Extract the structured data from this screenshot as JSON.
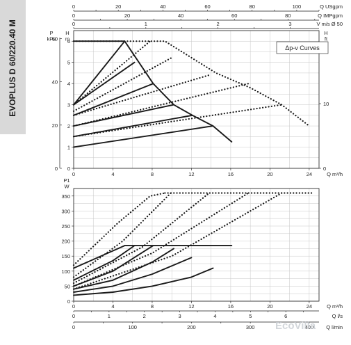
{
  "sidebar_label": "EVOPLUS D 60/220.40 M",
  "watermark": "EcoVilla",
  "colors": {
    "ink": "#1a1a1a",
    "grid": "#c7c7c7",
    "sidebar": "#d9d9d9"
  },
  "chart_data": [
    {
      "type": "line",
      "legend_text": "Δp-v Curves",
      "legend_position": "top-right",
      "grid": true,
      "x_axes": [
        {
          "unit": "Q USgpm",
          "ticks": [
            0,
            20,
            40,
            60,
            80,
            100
          ],
          "range": [
            0,
            110
          ]
        },
        {
          "unit": "Q IMPgpm",
          "ticks": [
            0,
            20,
            40,
            60,
            80
          ],
          "range": [
            0,
            91.6
          ]
        },
        {
          "unit": "V m/s Ø 50",
          "ticks": [
            0,
            1,
            2,
            3
          ],
          "range": [
            0,
            3.4
          ]
        },
        {
          "unit": "Q m³/h",
          "ticks": [
            0,
            4,
            8,
            12,
            16,
            20,
            24
          ],
          "range": [
            0,
            25
          ]
        }
      ],
      "y_left_head": {
        "unit": "H\nm",
        "ticks": [
          0,
          1,
          2,
          3,
          4,
          5,
          6
        ],
        "range": [
          0,
          6.5
        ]
      },
      "y_left_pressure": {
        "unit": "P\nkPa",
        "ticks": [
          0,
          20,
          40,
          60
        ],
        "range": [
          0,
          63.7
        ]
      },
      "y_right": {
        "unit": "H\nft",
        "ticks": [
          0,
          10
        ],
        "range": [
          0,
          21.3
        ]
      },
      "series": [
        {
          "style": "solid",
          "points": [
            [
              0,
              1.0
            ],
            [
              14.2,
              2.0
            ]
          ]
        },
        {
          "style": "solid",
          "points": [
            [
              0,
              1.5
            ],
            [
              12.1,
              2.5
            ]
          ]
        },
        {
          "style": "solid",
          "points": [
            [
              0,
              2.0
            ],
            [
              10.2,
              3.0
            ]
          ]
        },
        {
          "style": "solid",
          "points": [
            [
              0,
              2.5
            ],
            [
              8.1,
              4.0
            ]
          ]
        },
        {
          "style": "solid",
          "points": [
            [
              0,
              3.0
            ],
            [
              6.2,
              5.0
            ]
          ]
        },
        {
          "style": "solid",
          "points": [
            [
              0,
              3.0
            ],
            [
              5.2,
              6.0
            ]
          ]
        },
        {
          "style": "solid",
          "points": [
            [
              0,
              6.0
            ],
            [
              5.2,
              6.0
            ],
            [
              8.1,
              4.0
            ],
            [
              10.2,
              3.0
            ],
            [
              12.1,
              2.5
            ],
            [
              14.2,
              2.0
            ],
            [
              16.1,
              1.25
            ]
          ]
        },
        {
          "style": "dotted",
          "points": [
            [
              0,
              1.5
            ],
            [
              21.2,
              3.0
            ]
          ]
        },
        {
          "style": "dotted",
          "points": [
            [
              0,
              2.0
            ],
            [
              17.8,
              4.0
            ]
          ]
        },
        {
          "style": "dotted",
          "points": [
            [
              0,
              2.5
            ],
            [
              13.8,
              4.4
            ]
          ]
        },
        {
          "style": "dotted",
          "points": [
            [
              0,
              2.7
            ],
            [
              9.9,
              5.2
            ]
          ]
        },
        {
          "style": "dotted",
          "points": [
            [
              0,
              3.0
            ],
            [
              7.8,
              6.0
            ]
          ]
        },
        {
          "style": "dotted",
          "points": [
            [
              0,
              6.0
            ],
            [
              9.3,
              6.0
            ],
            [
              14.5,
              4.5
            ],
            [
              18.0,
              3.8
            ],
            [
              21.2,
              3.0
            ],
            [
              24.0,
              2.0
            ]
          ]
        }
      ]
    },
    {
      "type": "line",
      "grid": true,
      "x_axes": [
        {
          "unit": "Q m³/h",
          "ticks": [
            0,
            4,
            8,
            12,
            16,
            20,
            24
          ],
          "range": [
            0,
            25
          ]
        },
        {
          "unit": "Q l/s",
          "ticks": [
            0,
            1,
            2,
            3,
            4,
            5,
            6
          ],
          "range": [
            0,
            6.94
          ]
        },
        {
          "unit": "Q l/min",
          "ticks": [
            0,
            100,
            200,
            300,
            400
          ],
          "range": [
            0,
            416.7
          ]
        }
      ],
      "y_left": {
        "unit": "P1\nW",
        "ticks": [
          0,
          50,
          100,
          150,
          200,
          250,
          300,
          350
        ],
        "range": [
          0,
          375
        ]
      },
      "series": [
        {
          "style": "solid",
          "points": [
            [
              0,
              20
            ],
            [
              4,
              30
            ],
            [
              8,
              50
            ],
            [
              12,
              80
            ],
            [
              14.2,
              110
            ]
          ]
        },
        {
          "style": "solid",
          "points": [
            [
              0,
              30
            ],
            [
              4,
              50
            ],
            [
              8,
              90
            ],
            [
              12,
              145
            ]
          ]
        },
        {
          "style": "solid",
          "points": [
            [
              0,
              40
            ],
            [
              4,
              70
            ],
            [
              8,
              130
            ],
            [
              10.2,
              175
            ]
          ]
        },
        {
          "style": "solid",
          "points": [
            [
              0,
              50
            ],
            [
              4,
              100
            ],
            [
              8.1,
              185
            ]
          ]
        },
        {
          "style": "solid",
          "points": [
            [
              0,
              70
            ],
            [
              4,
              135
            ],
            [
              6.2,
              185
            ]
          ]
        },
        {
          "style": "solid",
          "points": [
            [
              0,
              110
            ],
            [
              5.2,
              185
            ]
          ]
        },
        {
          "style": "solid",
          "points": [
            [
              5.2,
              185
            ],
            [
              16.1,
              185
            ]
          ]
        },
        {
          "style": "dotted",
          "points": [
            [
              0,
              40
            ],
            [
              10,
              150
            ],
            [
              21.2,
              360
            ]
          ]
        },
        {
          "style": "dotted",
          "points": [
            [
              0,
              50
            ],
            [
              8,
              160
            ],
            [
              17.8,
              360
            ]
          ]
        },
        {
          "style": "dotted",
          "points": [
            [
              0,
              60
            ],
            [
              7,
              180
            ],
            [
              13.8,
              360
            ]
          ]
        },
        {
          "style": "dotted",
          "points": [
            [
              0,
              80
            ],
            [
              5,
              200
            ],
            [
              9.9,
              360
            ]
          ]
        },
        {
          "style": "dotted",
          "points": [
            [
              0,
              120
            ],
            [
              4.5,
              260
            ],
            [
              7.8,
              350
            ],
            [
              9.3,
              360
            ]
          ]
        },
        {
          "style": "dotted",
          "points": [
            [
              9.3,
              360
            ],
            [
              24.5,
              360
            ]
          ]
        }
      ]
    }
  ]
}
